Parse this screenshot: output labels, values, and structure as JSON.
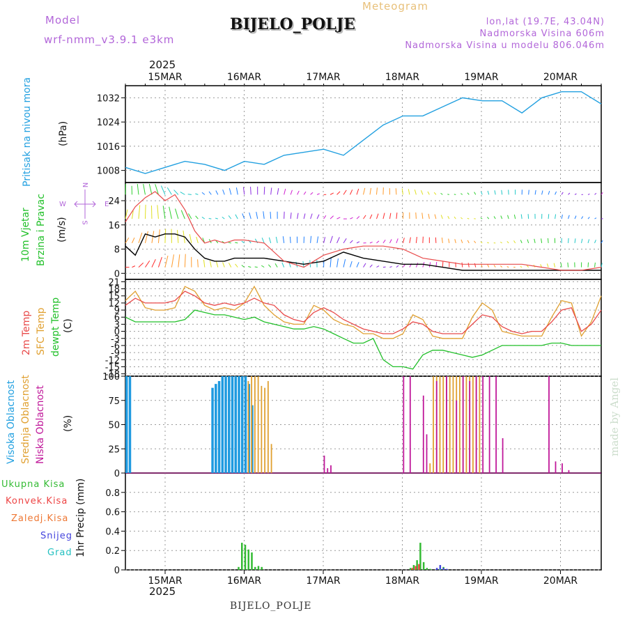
{
  "header": {
    "model_label": "Model",
    "model_name": "wrf-nmm_v3.9.1 e3km",
    "meteogram": "Meteogram",
    "title": "BIJELO_POLJE",
    "lonlat": "lon,lat (19.7E, 43.04N)",
    "altitude": "Nadmorska Visina 606m",
    "model_altitude": "Nadmorska Visina u modelu 806.046m",
    "footer": "BIJELO_POLJE",
    "watermark": "made by Angel"
  },
  "time_axis": {
    "year": "2025",
    "dates": [
      "15MAR",
      "16MAR",
      "17MAR",
      "18MAR",
      "19MAR",
      "20MAR"
    ]
  },
  "panels": {
    "pressure": {
      "label": "Pritisak na nivou mora",
      "unit": "(hPa)",
      "ticks": [
        "1032",
        "1024",
        "1016",
        "1008"
      ]
    },
    "wind": {
      "label1": "10m Vjetar",
      "label2": "Brzina i Pravac",
      "unit": "(m/s)",
      "ticks": [
        "24",
        "16",
        "8",
        "0"
      ],
      "compass": "N",
      "compass_w": "W",
      "compass_e": "E",
      "compass_s": "S"
    },
    "temp": {
      "label1": "2m Temp",
      "label2": "SFC Temp",
      "label3": "dewpt Temp",
      "unit": "(C)",
      "ticks": [
        "21",
        "18",
        "15",
        "12",
        "9",
        "6",
        "3",
        "0",
        "-3",
        "-6",
        "-9",
        "-12",
        "-15",
        "-18"
      ]
    },
    "cloud": {
      "label1": "Visoka Oblacnost",
      "label2": "Srednja Oblacnost",
      "label3": "Niska Oblacnost",
      "unit": "(%)",
      "ticks": [
        "100",
        "75",
        "50",
        "25",
        "0"
      ]
    },
    "precip": {
      "unit": "1hr Precip (mm)",
      "ticks": [
        "0.8",
        "0.6",
        "0.4",
        "0.2",
        "0"
      ],
      "legend": [
        "Ukupna Kisa",
        "Konvek.Kisa",
        "Zaledj.Kisa",
        "Snijeg",
        "Grad"
      ]
    }
  },
  "colors": {
    "pressure": "#22a0e0",
    "temp2m": "#e84a4a",
    "sfc": "#e0a030",
    "dewpt": "#22c02a",
    "high_cloud": "#1e9ae0",
    "mid_cloud": "#e0a030",
    "low_cloud": "#c0189a",
    "rain": "#33bb33",
    "conv": "#ee4444",
    "frz": "#ee7733",
    "snow": "#4444dd",
    "hail": "#22c0c0",
    "model": "#b266d9",
    "meteo": "#e8c07a"
  },
  "chart_data": [
    {
      "type": "line",
      "title": "Pritisak na nivou mora",
      "ylabel": "hPa",
      "ylim": [
        1004,
        1036
      ],
      "x_hours": [
        0,
        6,
        12,
        18,
        24,
        30,
        36,
        42,
        48,
        54,
        60,
        66,
        72,
        78,
        84,
        90,
        96,
        102,
        108,
        114,
        120,
        126,
        132,
        138,
        144
      ],
      "series": [
        {
          "name": "Pressure",
          "values": [
            1009,
            1007,
            1009,
            1011,
            1010,
            1008,
            1011,
            1010,
            1013,
            1014,
            1015,
            1013,
            1018,
            1023,
            1026,
            1026,
            1029,
            1032,
            1031,
            1031,
            1027,
            1032,
            1034,
            1034,
            1030
          ]
        }
      ]
    },
    {
      "type": "line",
      "title": "10m Vjetar Brzina i Pravac",
      "ylabel": "m/s",
      "ylim": [
        -2,
        30
      ],
      "series": [
        {
          "name": "Wind speed",
          "x_hours": [
            0,
            3,
            6,
            9,
            12,
            15,
            18,
            21,
            24,
            27,
            30,
            33,
            36,
            42,
            48,
            54,
            60,
            66,
            72,
            78,
            84,
            90,
            96,
            102,
            108,
            114,
            120,
            126,
            132,
            138,
            144
          ],
          "values": [
            9,
            6,
            13,
            12,
            13,
            13,
            12,
            8,
            5,
            4,
            4,
            5,
            5,
            5,
            4,
            3,
            4,
            7,
            5,
            4,
            3,
            3,
            2,
            1,
            1,
            1,
            1,
            1,
            1,
            1,
            1
          ]
        },
        {
          "name": "Wind gust",
          "x_hours": [
            0,
            3,
            6,
            9,
            12,
            15,
            18,
            21,
            24,
            27,
            30,
            33,
            36,
            42,
            48,
            54,
            60,
            66,
            72,
            78,
            84,
            90,
            96,
            102,
            108,
            114,
            120,
            126,
            132,
            138,
            144
          ],
          "values": [
            17,
            22,
            25,
            27,
            24,
            26,
            21,
            14,
            10,
            11,
            10,
            11,
            11,
            10,
            4,
            2,
            6,
            8,
            9,
            9,
            8,
            5,
            4,
            3,
            3,
            3,
            3,
            2,
            1,
            1,
            2
          ]
        }
      ]
    },
    {
      "type": "line",
      "title": "Temperature",
      "ylabel": "C",
      "ylim": [
        -19,
        22
      ],
      "x_hours": [
        0,
        3,
        6,
        9,
        12,
        15,
        18,
        21,
        24,
        27,
        30,
        33,
        36,
        39,
        42,
        45,
        48,
        51,
        54,
        57,
        60,
        63,
        66,
        69,
        72,
        75,
        78,
        81,
        84,
        87,
        90,
        93,
        96,
        99,
        102,
        105,
        108,
        111,
        114,
        117,
        120,
        123,
        126,
        129,
        132,
        135,
        138,
        141,
        144
      ],
      "series": [
        {
          "name": "2m Temp",
          "values": [
            11,
            14,
            12,
            12,
            12,
            13,
            17,
            15,
            12,
            11,
            12,
            11,
            12,
            14,
            12,
            11,
            7,
            5,
            4,
            8,
            10,
            8,
            5,
            3,
            1,
            0,
            -1,
            -1,
            1,
            4,
            3,
            0,
            -1,
            -1,
            -1,
            3,
            7,
            6,
            2,
            0,
            -1,
            0,
            0,
            4,
            9,
            10,
            0,
            3,
            9
          ]
        },
        {
          "name": "SFC Temp",
          "values": [
            13,
            17,
            10,
            9,
            9,
            10,
            19,
            17,
            11,
            9,
            10,
            9,
            12,
            19,
            11,
            7,
            4,
            3,
            3,
            11,
            9,
            5,
            3,
            2,
            -1,
            -1,
            -3,
            -3,
            -1,
            7,
            5,
            -2,
            -3,
            -3,
            -3,
            6,
            12,
            9,
            0,
            -1,
            -2,
            -2,
            -2,
            6,
            13,
            12,
            -2,
            4,
            15
          ]
        },
        {
          "name": "dewpt Temp",
          "values": [
            6,
            4,
            4,
            4,
            4,
            4,
            5,
            9,
            8,
            7,
            7,
            6,
            5,
            6,
            4,
            3,
            2,
            1,
            1,
            2,
            1,
            -1,
            -3,
            -5,
            -5,
            -3,
            -12,
            -15,
            -15,
            -16,
            -10,
            -8,
            -8,
            -9,
            -10,
            -11,
            -10,
            -8,
            -6,
            -6,
            -6,
            -6,
            -6,
            -5,
            -5,
            -6,
            -6,
            -6,
            -6
          ]
        }
      ]
    },
    {
      "type": "bar",
      "title": "Oblacnost",
      "ylabel": "%",
      "ylim": [
        0,
        100
      ],
      "series": [
        {
          "name": "Visoka Oblacnost",
          "x_hours": [
            0,
            1,
            26,
            27,
            28,
            29,
            30,
            31,
            32,
            33,
            34,
            35,
            36,
            37,
            38
          ],
          "values": [
            100,
            100,
            88,
            92,
            95,
            100,
            100,
            100,
            100,
            100,
            100,
            100,
            100,
            92,
            70
          ]
        },
        {
          "name": "Srednja Oblacnost",
          "x_hours": [
            37,
            38,
            39,
            40,
            41,
            42,
            43,
            44,
            45,
            46,
            47,
            48,
            49,
            92,
            93,
            94,
            95,
            96,
            97,
            98,
            99,
            100,
            101,
            102,
            103,
            104,
            105,
            106,
            107
          ],
          "values": [
            95,
            100,
            100,
            100,
            90,
            88,
            95,
            30,
            0,
            0,
            0,
            0,
            0,
            10,
            100,
            100,
            100,
            100,
            100,
            100,
            100,
            100,
            100,
            100,
            100,
            100,
            100,
            100,
            100
          ]
        },
        {
          "name": "Niska Oblacnost",
          "x_hours": [
            60,
            61,
            62,
            84,
            86,
            90,
            91,
            94,
            97,
            100,
            102,
            104,
            106,
            108,
            110,
            112,
            114,
            128,
            130,
            132,
            134
          ],
          "values": [
            18,
            5,
            8,
            100,
            100,
            80,
            40,
            95,
            100,
            75,
            100,
            95,
            100,
            100,
            100,
            100,
            36,
            100,
            12,
            10,
            3
          ]
        }
      ]
    },
    {
      "type": "bar",
      "title": "1hr Precip",
      "ylabel": "mm",
      "ylim": [
        0,
        1.0
      ],
      "series": [
        {
          "name": "Ukupna Kisa",
          "x_hours": [
            34,
            35,
            36,
            37,
            38,
            39,
            40,
            41,
            86,
            87,
            88,
            89,
            90,
            91,
            92,
            95,
            96
          ],
          "values": [
            0.03,
            0.28,
            0.26,
            0.21,
            0.18,
            0.03,
            0.04,
            0.03,
            0.02,
            0.05,
            0.1,
            0.28,
            0.08,
            0.02,
            0.01,
            0.02,
            0.03
          ]
        },
        {
          "name": "Konvek.Kisa",
          "x_hours": [
            87,
            88,
            89
          ],
          "values": [
            0.02,
            0.04,
            0.06
          ]
        },
        {
          "name": "Snijeg",
          "x_hours": [
            94,
            95,
            96,
            97
          ],
          "values": [
            0.02,
            0.05,
            0.02,
            0.01
          ]
        },
        {
          "name": "Grad",
          "x_hours": [
            95
          ],
          "values": [
            0.01
          ]
        }
      ]
    }
  ]
}
